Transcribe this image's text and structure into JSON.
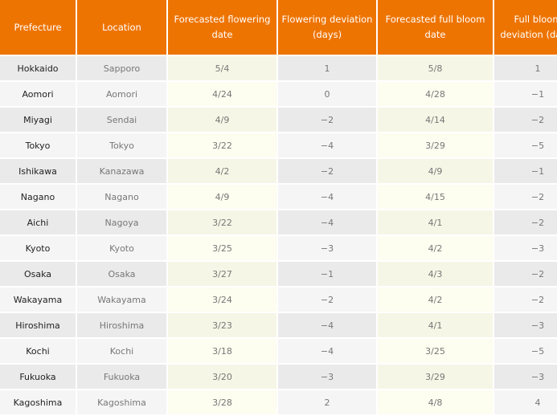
{
  "table": {
    "headers": [
      "Prefecture",
      "Location",
      "Forecasted flowering date",
      "Flowering deviation (days)",
      "Forecasted full bloom date",
      "Full bloom deviation (days)"
    ],
    "rows": [
      {
        "prefecture": "Hokkaido",
        "location": "Sapporo",
        "flowering_date": "5/4",
        "flowering_deviation": "1",
        "full_bloom_date": "5/8",
        "full_bloom_deviation": "1"
      },
      {
        "prefecture": "Aomori",
        "location": "Aomori",
        "flowering_date": "4/24",
        "flowering_deviation": "0",
        "full_bloom_date": "4/28",
        "full_bloom_deviation": "−1"
      },
      {
        "prefecture": "Miyagi",
        "location": "Sendai",
        "flowering_date": "4/9",
        "flowering_deviation": "−2",
        "full_bloom_date": "4/14",
        "full_bloom_deviation": "−2"
      },
      {
        "prefecture": "Tokyo",
        "location": "Tokyo",
        "flowering_date": "3/22",
        "flowering_deviation": "−4",
        "full_bloom_date": "3/29",
        "full_bloom_deviation": "−5"
      },
      {
        "prefecture": "Ishikawa",
        "location": "Kanazawa",
        "flowering_date": "4/2",
        "flowering_deviation": "−2",
        "full_bloom_date": "4/9",
        "full_bloom_deviation": "−1"
      },
      {
        "prefecture": "Nagano",
        "location": "Nagano",
        "flowering_date": "4/9",
        "flowering_deviation": "−4",
        "full_bloom_date": "4/15",
        "full_bloom_deviation": "−2"
      },
      {
        "prefecture": "Aichi",
        "location": "Nagoya",
        "flowering_date": "3/22",
        "flowering_deviation": "−4",
        "full_bloom_date": "4/1",
        "full_bloom_deviation": "−2"
      },
      {
        "prefecture": "Kyoto",
        "location": "Kyoto",
        "flowering_date": "3/25",
        "flowering_deviation": "−3",
        "full_bloom_date": "4/2",
        "full_bloom_deviation": "−3"
      },
      {
        "prefecture": "Osaka",
        "location": "Osaka",
        "flowering_date": "3/27",
        "flowering_deviation": "−1",
        "full_bloom_date": "4/3",
        "full_bloom_deviation": "−2"
      },
      {
        "prefecture": "Wakayama",
        "location": "Wakayama",
        "flowering_date": "3/24",
        "flowering_deviation": "−2",
        "full_bloom_date": "4/2",
        "full_bloom_deviation": "−2"
      },
      {
        "prefecture": "Hiroshima",
        "location": "Hiroshima",
        "flowering_date": "3/23",
        "flowering_deviation": "−4",
        "full_bloom_date": "4/1",
        "full_bloom_deviation": "−3"
      },
      {
        "prefecture": "Kochi",
        "location": "Kochi",
        "flowering_date": "3/18",
        "flowering_deviation": "−4",
        "full_bloom_date": "3/25",
        "full_bloom_deviation": "−5"
      },
      {
        "prefecture": "Fukuoka",
        "location": "Fukuoka",
        "flowering_date": "3/20",
        "flowering_deviation": "−3",
        "full_bloom_date": "3/29",
        "full_bloom_deviation": "−3"
      },
      {
        "prefecture": "Kagoshima",
        "location": "Kagoshima",
        "flowering_date": "3/28",
        "flowering_deviation": "2",
        "full_bloom_date": "4/8",
        "full_bloom_deviation": "4"
      }
    ]
  }
}
